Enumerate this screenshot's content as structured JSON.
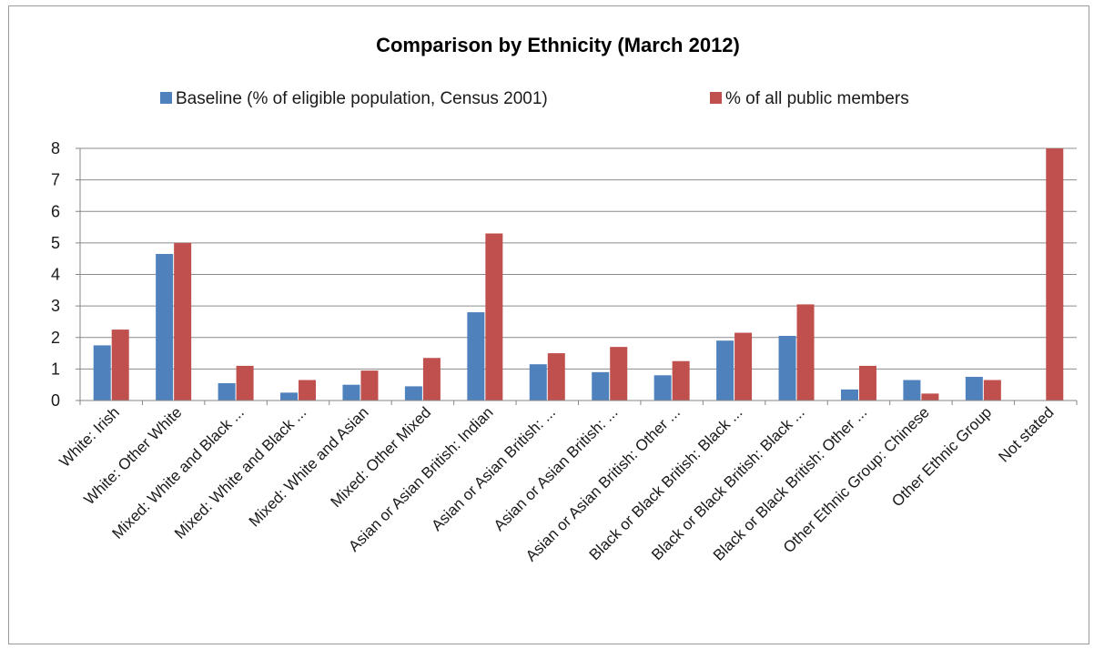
{
  "chart_data": {
    "type": "bar",
    "title": "Comparison by Ethnicity (March 2012)",
    "xlabel": "",
    "ylabel": "",
    "ylim": [
      0,
      8
    ],
    "yticks": [
      "0",
      "1",
      "2",
      "3",
      "4",
      "5",
      "6",
      "7",
      "8"
    ],
    "grid": true,
    "legend_position": "top",
    "categories": [
      "White: Irish",
      "White: Other White",
      "Mixed: White and Black ...",
      "Mixed: White and Black ...",
      "Mixed: White and Asian",
      "Mixed: Other Mixed",
      "Asian or Asian British: Indian",
      "Asian or Asian British: ...",
      "Asian or Asian British: ...",
      "Asian or Asian British: Other ...",
      "Black or Black British: Black ...",
      "Black or Black British: Black ...",
      "Black or Black British: Other ...",
      "Other Ethnic Group: Chinese",
      "Other Ethnic Group",
      "Not stated"
    ],
    "series": [
      {
        "name": "Baseline (% of eligible population, Census 2001)",
        "color": "#4f81bd",
        "values": [
          1.75,
          4.65,
          0.55,
          0.25,
          0.5,
          0.45,
          2.8,
          1.15,
          0.9,
          0.8,
          1.9,
          2.05,
          0.35,
          0.65,
          0.75,
          0
        ]
      },
      {
        "name": "% of all public members",
        "color": "#c0504d",
        "values": [
          2.25,
          5.0,
          1.1,
          0.65,
          0.95,
          1.35,
          5.3,
          1.5,
          1.7,
          1.25,
          2.15,
          3.05,
          1.1,
          0.22,
          0.65,
          8.0
        ]
      }
    ]
  }
}
